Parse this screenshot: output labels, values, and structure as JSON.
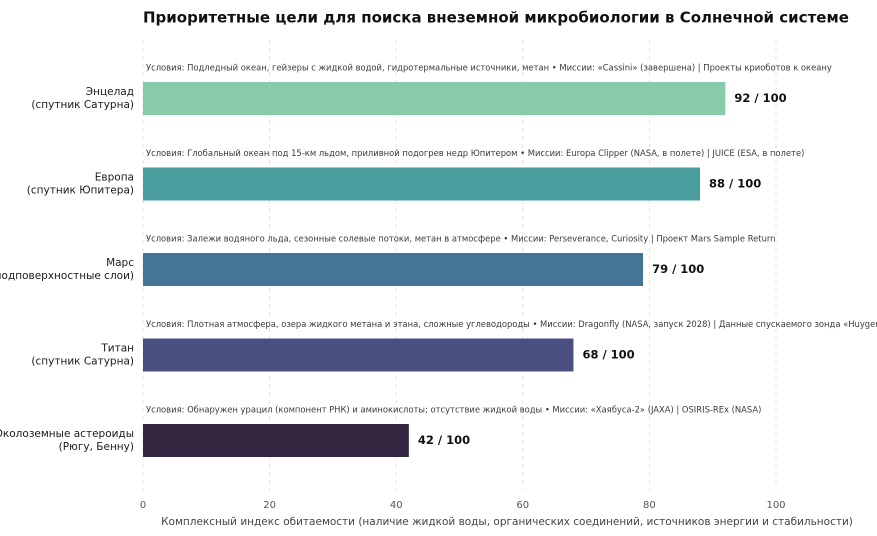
{
  "chart_data": {
    "type": "bar",
    "orientation": "horizontal",
    "title": "Приоритетные цели для поиска внеземной микробиологии в Солнечной системе",
    "xlabel": "Комплексный индекс обитаемости (наличие жидкой воды, органических соединений, источников энергии и стабильности)",
    "ylabel": "",
    "xlim": [
      0,
      100
    ],
    "xticks": [
      "0",
      "20",
      "40",
      "60",
      "80",
      "100"
    ],
    "grid": "vertical dashed",
    "categories": [
      [
        "Энцелад",
        "(спутник Сатурна)"
      ],
      [
        "Европа",
        "(спутник Юпитера)"
      ],
      [
        "Марс",
        "(подповерхностные слои)"
      ],
      [
        "Титан",
        "(спутник Сатурна)"
      ],
      [
        "Околоземные астероиды",
        "(Рюгу, Бенну)"
      ]
    ],
    "values": [
      92,
      88,
      79,
      68,
      42
    ],
    "value_labels": [
      "92 / 100",
      "88 / 100",
      "79 / 100",
      "68 / 100",
      "42 / 100"
    ],
    "annotations": [
      "Условия: Подледный океан, гейзеры с жидкой водой, гидротермальные источники, метан   •   Миссии: «Cassini» (завершена) | Проекты криоботов к океану",
      "Условия: Глобальный океан под 15-км льдом, приливной подогрев недр Юпитером   •   Миссии: Europa Clipper (NASA, в полете) | JUICE (ESA, в полете)",
      "Условия: Залежи водяного льда, сезонные солевые потоки, метан в атмосфере   •   Миссии: Perseverance, Curiosity | Проект Mars Sample Return",
      "Условия: Плотная атмосфера, озера жидкого метана и этана, сложные углеводороды   •   Миссии: Dragonfly (NASA, запуск 2028) | Данные спускаемого зонда «Huygens»",
      "Условия: Обнаружен урацил (компонент РНК) и аминокислоты; отсутствие жидкой воды   •   Миссии: «Хаябуса-2» (JAXA) | OSIRIS-REx (NASA)"
    ],
    "colors": [
      "#87cbab",
      "#4a9e9d",
      "#437596",
      "#4a4f82",
      "#342640"
    ]
  }
}
